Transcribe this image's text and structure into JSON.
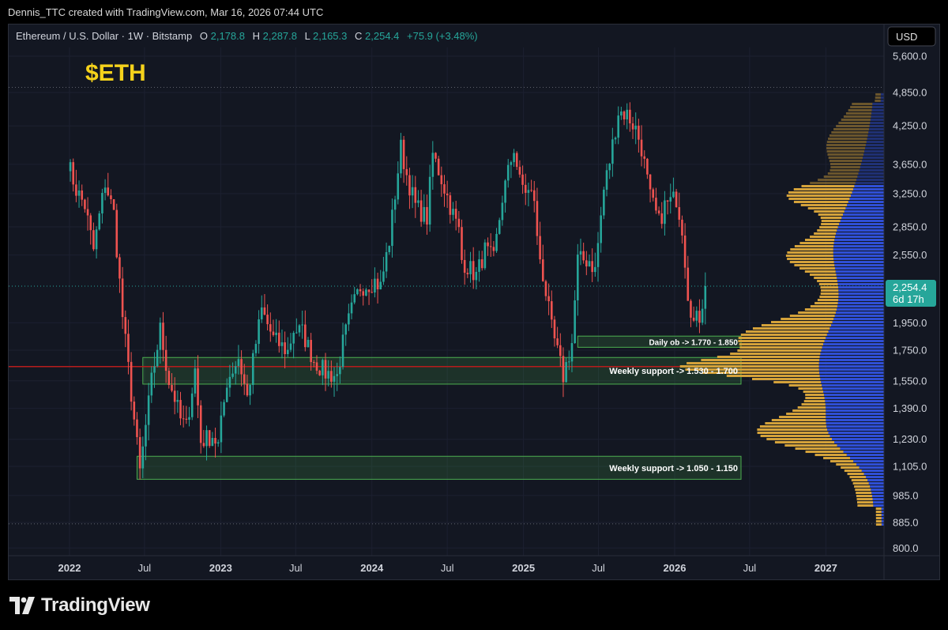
{
  "header": {
    "credit": "Dennis_TTC created with TradingView.com, Mar 16, 2026 07:44 UTC"
  },
  "symbol": {
    "name": "Ethereum / U.S. Dollar · 1W · Bitstamp",
    "o_label": "O",
    "o": "2,178.8",
    "h_label": "H",
    "h": "2,287.8",
    "l_label": "L",
    "l": "2,165.3",
    "c_label": "C",
    "c": "2,254.4",
    "change": "+75.9 (+3.48%)"
  },
  "annotation": {
    "ticker": "$ETH"
  },
  "currency": "USD",
  "price_tag": {
    "price": "2,254.4",
    "countdown": "6d 17h"
  },
  "zones": [
    {
      "label": "Daily ob -> 1.770 - 1.850",
      "low": 1770,
      "high": 1850
    },
    {
      "label": "Weekly support -> 1.530 - 1.700",
      "low": 1530,
      "high": 1700
    },
    {
      "label": "Weekly support -> 1.050 - 1.150",
      "low": 1050,
      "high": 1150
    }
  ],
  "colors": {
    "up": "#26a69a",
    "down": "#ef5350",
    "zone_border": "#4caf50",
    "vp_up": "#2f4fd6",
    "vp_down": "#d4a23a",
    "support_line": "#b71c1c",
    "ticker": "#f5d21b"
  },
  "chart_data": {
    "type": "candlestick",
    "title": "Ethereum / U.S. Dollar · 1W · Bitstamp",
    "ylabel": "USD",
    "y_scale": "log",
    "ylim": [
      780,
      6100
    ],
    "x_ticks": [
      "2022",
      "Jul",
      "2023",
      "Jul",
      "2024",
      "Jul",
      "2025",
      "Jul",
      "2026",
      "Jul",
      "2027"
    ],
    "y_ticks": [
      "5,600.0",
      "4,850.0",
      "4,250.0",
      "3,650.0",
      "3,250.0",
      "2,850.0",
      "2,550.0",
      "1,950.0",
      "1,750.0",
      "1,550.0",
      "1,390.0",
      "1,230.0",
      "1,105.0",
      "985.0",
      "885.0",
      "800.0"
    ],
    "levels": {
      "top_dotted": 4950,
      "bottom_dotted": 880,
      "last_price": 2254.4,
      "support_line": 1640
    },
    "ohlc_waypoints": [
      [
        "2021-12-27",
        3700
      ],
      [
        "2022-01-17",
        3300
      ],
      [
        "2022-02-07",
        3100
      ],
      [
        "2022-02-28",
        2600
      ],
      [
        "2022-03-28",
        3400
      ],
      [
        "2022-04-18",
        3000
      ],
      [
        "2022-05-09",
        2000
      ],
      [
        "2022-06-13",
        1200
      ],
      [
        "2022-06-20",
        1080
      ],
      [
        "2022-07-18",
        1550
      ],
      [
        "2022-08-08",
        1900
      ],
      [
        "2022-08-29",
        1550
      ],
      [
        "2022-09-12",
        1450
      ],
      [
        "2022-09-26",
        1330
      ],
      [
        "2022-10-10",
        1290
      ],
      [
        "2022-10-31",
        1620
      ],
      [
        "2022-11-14",
        1220
      ],
      [
        "2022-12-12",
        1250
      ],
      [
        "2022-12-26",
        1200
      ],
      [
        "2023-01-16",
        1550
      ],
      [
        "2023-02-13",
        1700
      ],
      [
        "2023-03-06",
        1450
      ],
      [
        "2023-03-27",
        1800
      ],
      [
        "2023-04-10",
        2050
      ],
      [
        "2023-05-08",
        1830
      ],
      [
        "2023-06-12",
        1740
      ],
      [
        "2023-06-26",
        1900
      ],
      [
        "2023-07-17",
        1880
      ],
      [
        "2023-08-14",
        1680
      ],
      [
        "2023-09-11",
        1600
      ],
      [
        "2023-10-09",
        1580
      ],
      [
        "2023-10-23",
        1800
      ],
      [
        "2023-11-13",
        2050
      ],
      [
        "2023-12-04",
        2250
      ],
      [
        "2024-01-08",
        2300
      ],
      [
        "2024-01-22",
        2250
      ],
      [
        "2024-02-12",
        2700
      ],
      [
        "2024-03-11",
        3900
      ],
      [
        "2024-03-25",
        3500
      ],
      [
        "2024-04-15",
        3100
      ],
      [
        "2024-05-13",
        2950
      ],
      [
        "2024-05-27",
        3800
      ],
      [
        "2024-06-17",
        3450
      ],
      [
        "2024-07-08",
        3100
      ],
      [
        "2024-07-29",
        2800
      ],
      [
        "2024-08-05",
        2500
      ],
      [
        "2024-09-09",
        2350
      ],
      [
        "2024-09-30",
        2600
      ],
      [
        "2024-10-21",
        2500
      ],
      [
        "2024-11-11",
        3200
      ],
      [
        "2024-12-09",
        3900
      ],
      [
        "2024-12-23",
        3400
      ],
      [
        "2025-01-06",
        3300
      ],
      [
        "2025-01-27",
        3200
      ],
      [
        "2025-02-03",
        2700
      ],
      [
        "2025-02-24",
        2200
      ],
      [
        "2025-03-10",
        1900
      ],
      [
        "2025-04-07",
        1580
      ],
      [
        "2025-04-28",
        1800
      ],
      [
        "2025-05-12",
        2500
      ],
      [
        "2025-06-09",
        2500
      ],
      [
        "2025-06-23",
        2400
      ],
      [
        "2025-07-14",
        3300
      ],
      [
        "2025-07-28",
        3700
      ],
      [
        "2025-08-18",
        4500
      ],
      [
        "2025-09-08",
        4450
      ],
      [
        "2025-09-29",
        4200
      ],
      [
        "2025-10-13",
        3900
      ],
      [
        "2025-11-03",
        3200
      ],
      [
        "2025-11-24",
        2900
      ],
      [
        "2025-12-08",
        3100
      ],
      [
        "2026-01-05",
        3200
      ],
      [
        "2026-01-19",
        2850
      ],
      [
        "2026-02-02",
        2200
      ],
      [
        "2026-02-16",
        1950
      ],
      [
        "2026-03-02",
        2000
      ],
      [
        "2026-03-16",
        2254.4
      ]
    ]
  }
}
